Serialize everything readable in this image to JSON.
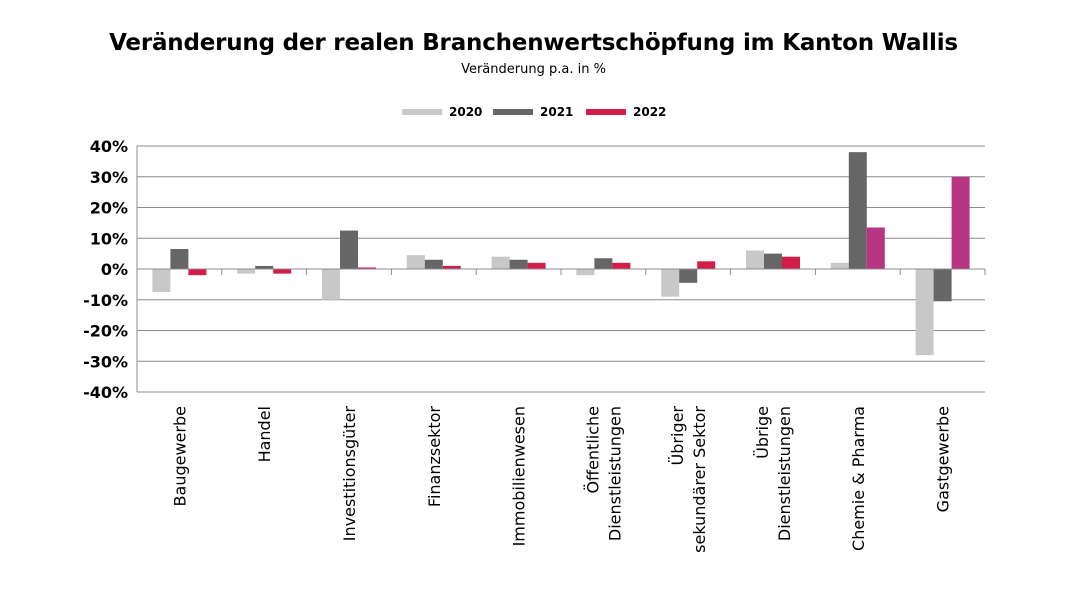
{
  "chart_data": {
    "type": "bar",
    "title": "Veränderung der realen Branchenwertschöpfung im Kanton Wallis",
    "subtitle": "Veränderung p.a. in %",
    "xlabel": "",
    "ylabel": "",
    "ylim": [
      -40,
      40
    ],
    "yticks": [
      40,
      30,
      20,
      10,
      0,
      -10,
      -20,
      -30,
      -40
    ],
    "ytick_labels": [
      "40%",
      "30%",
      "20%",
      "10%",
      "0%",
      "-10%",
      "-20%",
      "-30%",
      "-40%"
    ],
    "grid": true,
    "legend_position": "top",
    "categories": [
      [
        "Baugewerbe"
      ],
      [
        "Handel"
      ],
      [
        "Investitionsgüter"
      ],
      [
        "Finanzsektor"
      ],
      [
        "Immobilienwesen"
      ],
      [
        "Öffentliche",
        "Dienstleistungen"
      ],
      [
        "Übriger",
        "sekundärer Sektor"
      ],
      [
        "Übrige",
        "Dienstleistungen"
      ],
      [
        "Chemie & Pharma"
      ],
      [
        "Gastgewerbe"
      ]
    ],
    "series": [
      {
        "name": "2020",
        "color": "#c8c8c8",
        "values": [
          -7.5,
          -1.5,
          -10.0,
          4.5,
          4.0,
          -2.0,
          -9.0,
          6.0,
          2.0,
          -28.0
        ]
      },
      {
        "name": "2021",
        "color": "#666666",
        "values": [
          6.5,
          1.0,
          12.5,
          3.0,
          3.0,
          3.5,
          -4.5,
          5.0,
          38.0,
          -10.5
        ]
      },
      {
        "name": "2022",
        "color": "#d41c48",
        "values": [
          -2.0,
          -1.5,
          0.5,
          1.0,
          2.0,
          2.0,
          2.5,
          4.0,
          13.5,
          30.0
        ]
      }
    ],
    "highlight_color_2022": "#b83584",
    "highlight_categories_2022": [
      8,
      9
    ]
  }
}
